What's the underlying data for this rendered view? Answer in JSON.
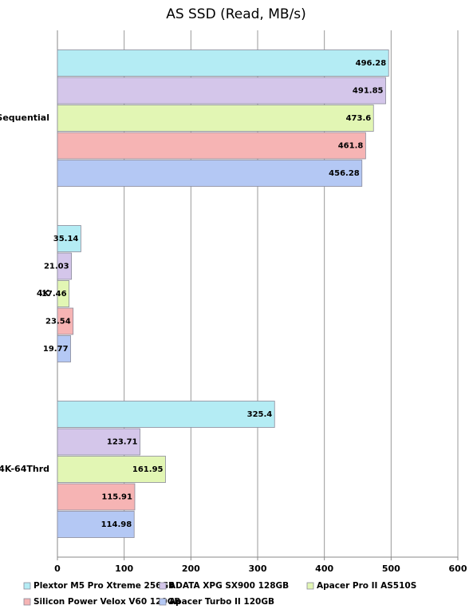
{
  "chart_data": {
    "type": "hbar",
    "title": "AS SSD (Read, MB/s)",
    "categories": [
      "Sequential",
      "4K",
      "4K-64Thrd"
    ],
    "series": [
      {
        "name": "Plextor M5 Pro Xtreme 256GB",
        "color": "#b4ecf4",
        "values": [
          496.28,
          35.14,
          325.4
        ]
      },
      {
        "name": "ADATA XPG SX900 128GB",
        "color": "#d4c6ea",
        "values": [
          491.85,
          21.03,
          123.71
        ]
      },
      {
        "name": "Apacer Pro II AS510S",
        "color": "#e2f6b4",
        "values": [
          473.6,
          17.46,
          161.95
        ]
      },
      {
        "name": "Silicon Power Velox V60 120GB",
        "color": "#f6b4b4",
        "values": [
          461.8,
          23.54,
          115.91
        ]
      },
      {
        "name": "Apacer Turbo II 120GB",
        "color": "#b4c8f4",
        "values": [
          456.28,
          19.77,
          114.98
        ]
      }
    ],
    "xlim": [
      0,
      600
    ],
    "xticks": [
      0,
      100,
      200,
      300,
      400,
      500,
      600
    ],
    "grid": true
  }
}
